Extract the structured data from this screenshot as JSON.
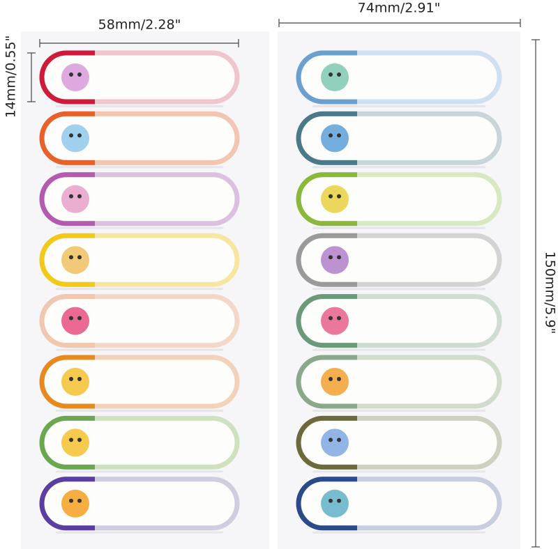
{
  "dimensions": {
    "left_width": "58mm/2.28\"",
    "right_width": "74mm/2.91\"",
    "label_height": "14mm/0.55\"",
    "sheet_height": "150mm/5.9\""
  }
}
